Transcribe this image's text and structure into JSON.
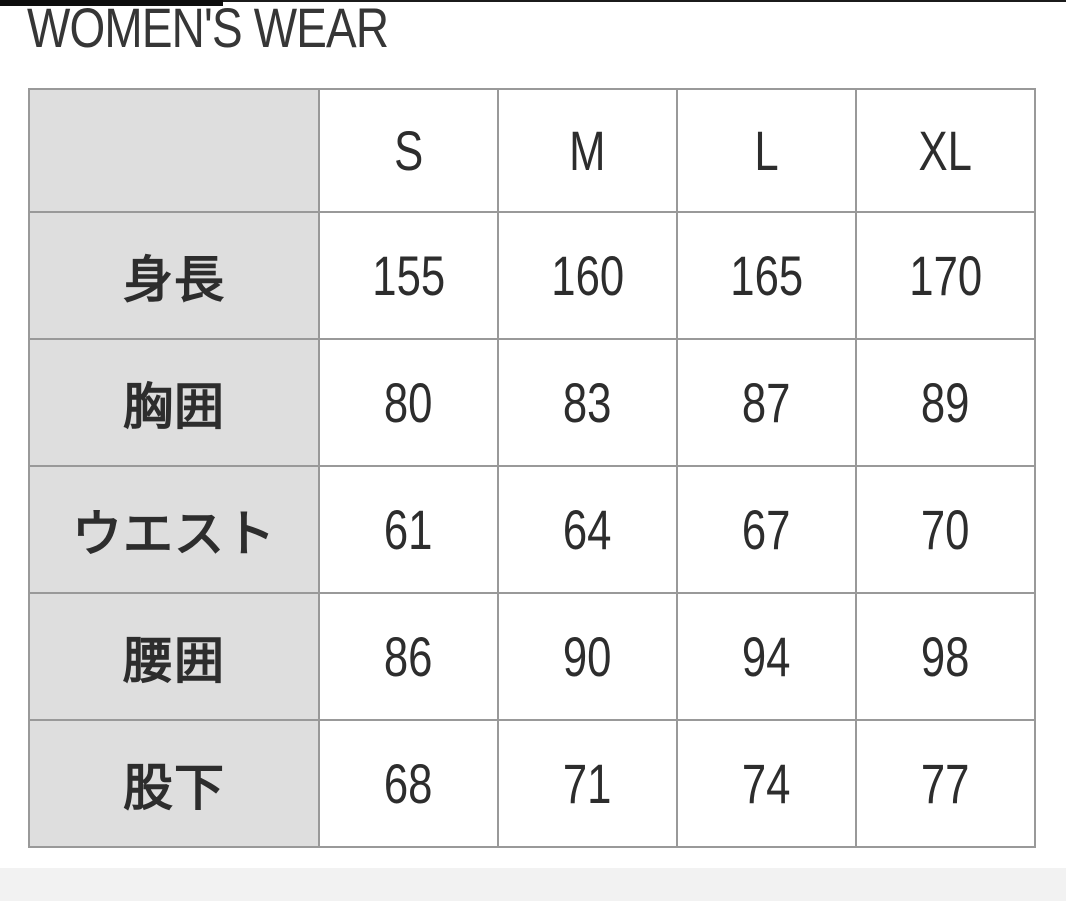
{
  "page": {
    "title": "WOMEN'S WEAR"
  },
  "chart_data": {
    "type": "table",
    "title": "WOMEN'S WEAR",
    "columns": [
      "S",
      "M",
      "L",
      "XL"
    ],
    "corner_label": "",
    "rows": [
      {
        "label": "身長",
        "values": [
          155,
          160,
          165,
          170
        ]
      },
      {
        "label": "胸囲",
        "values": [
          80,
          83,
          87,
          89
        ]
      },
      {
        "label": "ウエスト",
        "values": [
          61,
          64,
          67,
          70
        ]
      },
      {
        "label": "腰囲",
        "values": [
          86,
          90,
          94,
          98
        ]
      },
      {
        "label": "股下",
        "values": [
          68,
          71,
          74,
          77
        ]
      }
    ]
  },
  "colors": {
    "label_cell_bg": "#dedede",
    "table_border": "#999999",
    "text": "#2d2d2d",
    "title_text": "#363636",
    "bottom_strip_bg": "#f2f2f2",
    "top_bar": "#0e0e0e"
  }
}
